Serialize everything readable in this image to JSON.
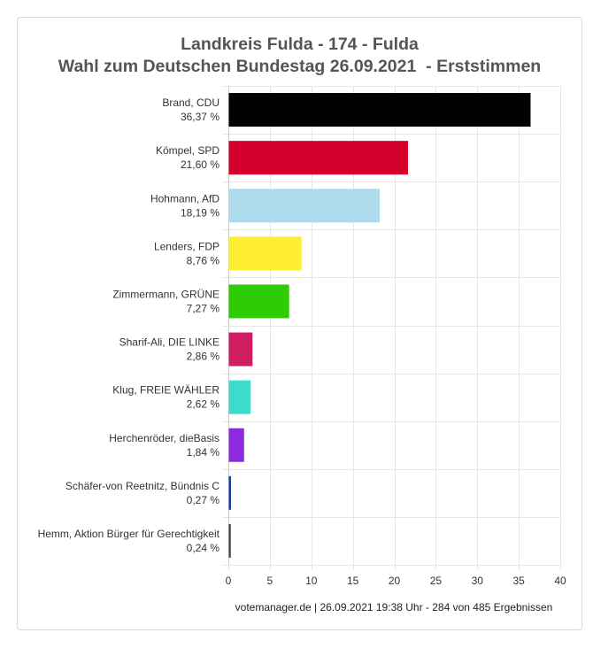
{
  "title_line1": "Landkreis Fulda - 174 - Fulda",
  "title_line2": "Wahl zum Deutschen Bundestag 26.09.2021  - Erststimmen",
  "footer": "votemanager.de | 26.09.2021 19:38 Uhr - 284 von 485 Ergebnissen",
  "chart_data": {
    "type": "bar",
    "orientation": "horizontal",
    "title": "Landkreis Fulda - 174 - Fulda\nWahl zum Deutschen Bundestag 26.09.2021  - Erststimmen",
    "categories": [
      "Brand, CDU",
      "Kömpel, SPD",
      "Hohmann, AfD",
      "Lenders, FDP",
      "Zimmermann, GRÜNE",
      "Sharif-Ali, DIE LINKE",
      "Klug, FREIE WÄHLER",
      "Herchenröder, dieBasis",
      "Schäfer-von Reetnitz, Bündnis C",
      "Hemm, Aktion Bürger für Gerechtigkeit"
    ],
    "values": [
      36.37,
      21.6,
      18.19,
      8.76,
      7.27,
      2.86,
      2.62,
      1.84,
      0.27,
      0.24
    ],
    "value_labels": [
      "36,37 %",
      "21,60 %",
      "18,19 %",
      "8,76 %",
      "7,27 %",
      "2,86 %",
      "2,62 %",
      "1,84 %",
      "0,27 %",
      "0,24 %"
    ],
    "colors": [
      "#000000",
      "#d5002c",
      "#aedcec",
      "#fdee2f",
      "#2fcb04",
      "#cf1d62",
      "#3ddcca",
      "#8b2adf",
      "#1f3fa0",
      "#444444"
    ],
    "xlim": [
      0,
      40
    ],
    "xticks": [
      0,
      5,
      10,
      15,
      20,
      25,
      30,
      35,
      40
    ],
    "xlabel": "",
    "ylabel": "",
    "grid": true,
    "legend": "none"
  }
}
